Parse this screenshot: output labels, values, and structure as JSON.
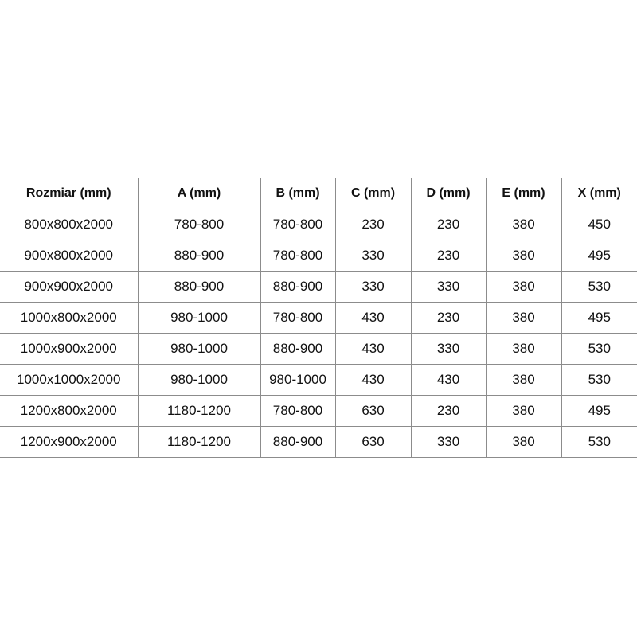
{
  "table": {
    "headers": [
      "Rozmiar (mm)",
      "A (mm)",
      "B (mm)",
      "C (mm)",
      "D (mm)",
      "E (mm)",
      "X (mm)"
    ],
    "rows": [
      [
        "800x800x2000",
        "780-800",
        "780-800",
        "230",
        "230",
        "380",
        "450"
      ],
      [
        "900x800x2000",
        "880-900",
        "780-800",
        "330",
        "230",
        "380",
        "495"
      ],
      [
        "900x900x2000",
        "880-900",
        "880-900",
        "330",
        "330",
        "380",
        "530"
      ],
      [
        "1000x800x2000",
        "980-1000",
        "780-800",
        "430",
        "230",
        "380",
        "495"
      ],
      [
        "1000x900x2000",
        "980-1000",
        "880-900",
        "430",
        "330",
        "380",
        "530"
      ],
      [
        "1000x1000x2000",
        "980-1000",
        "980-1000",
        "430",
        "430",
        "380",
        "530"
      ],
      [
        "1200x800x2000",
        "1180-1200",
        "780-800",
        "630",
        "230",
        "380",
        "495"
      ],
      [
        "1200x900x2000",
        "1180-1200",
        "880-900",
        "630",
        "330",
        "380",
        "530"
      ]
    ]
  }
}
